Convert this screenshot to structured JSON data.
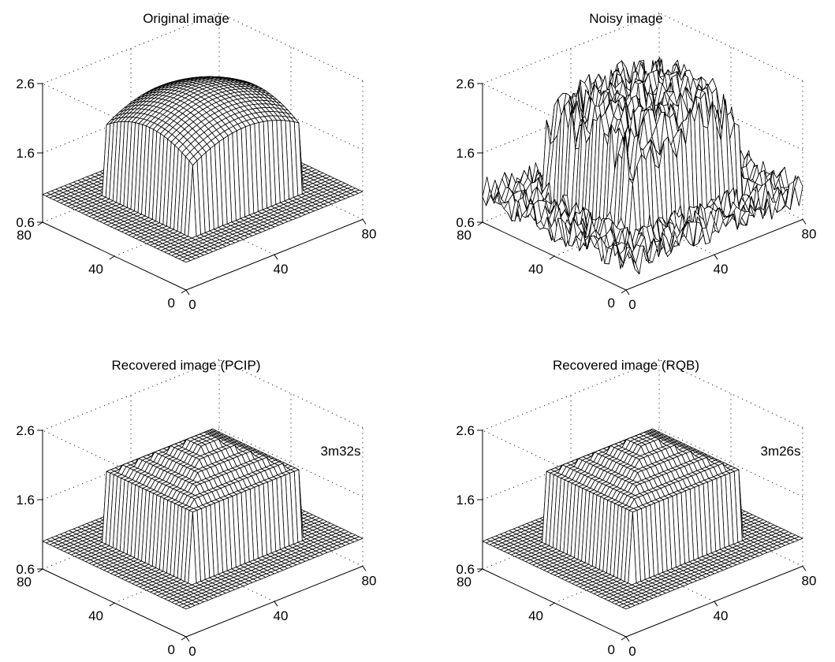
{
  "chart_data": [
    {
      "type": "surface",
      "title": "Original image",
      "annotation": "",
      "surface": "dome",
      "x_ticks": [
        "0",
        "40",
        "80"
      ],
      "y_ticks": [
        "0",
        "40",
        "80"
      ],
      "z_ticks": [
        "0.6",
        "1.6",
        "2.6"
      ],
      "xlim": [
        0,
        80
      ],
      "ylim": [
        0,
        80
      ],
      "zlim": [
        0.6,
        2.6
      ],
      "grid": true
    },
    {
      "type": "surface",
      "title": "Noisy image",
      "annotation": "",
      "surface": "noisy",
      "x_ticks": [
        "0",
        "40",
        "80"
      ],
      "y_ticks": [
        "0",
        "40",
        "80"
      ],
      "z_ticks": [
        "0.6",
        "1.6",
        "2.6"
      ],
      "xlim": [
        0,
        80
      ],
      "ylim": [
        0,
        80
      ],
      "zlim": [
        0.6,
        2.6
      ],
      "grid": true
    },
    {
      "type": "surface",
      "title": "Recovered image (PCIP)",
      "annotation": "3m32s",
      "surface": "recovered",
      "x_ticks": [
        "0",
        "40",
        "80"
      ],
      "y_ticks": [
        "0",
        "40",
        "80"
      ],
      "z_ticks": [
        "0.6",
        "1.6",
        "2.6"
      ],
      "xlim": [
        0,
        80
      ],
      "ylim": [
        0,
        80
      ],
      "zlim": [
        0.6,
        2.6
      ],
      "grid": true
    },
    {
      "type": "surface",
      "title": "Recovered image (RQB)",
      "annotation": "3m26s",
      "surface": "recovered",
      "x_ticks": [
        "0",
        "40",
        "80"
      ],
      "y_ticks": [
        "0",
        "40",
        "80"
      ],
      "z_ticks": [
        "0.6",
        "1.6",
        "2.6"
      ],
      "xlim": [
        0,
        80
      ],
      "ylim": [
        0,
        80
      ],
      "zlim": [
        0.6,
        2.6
      ],
      "grid": true
    }
  ]
}
